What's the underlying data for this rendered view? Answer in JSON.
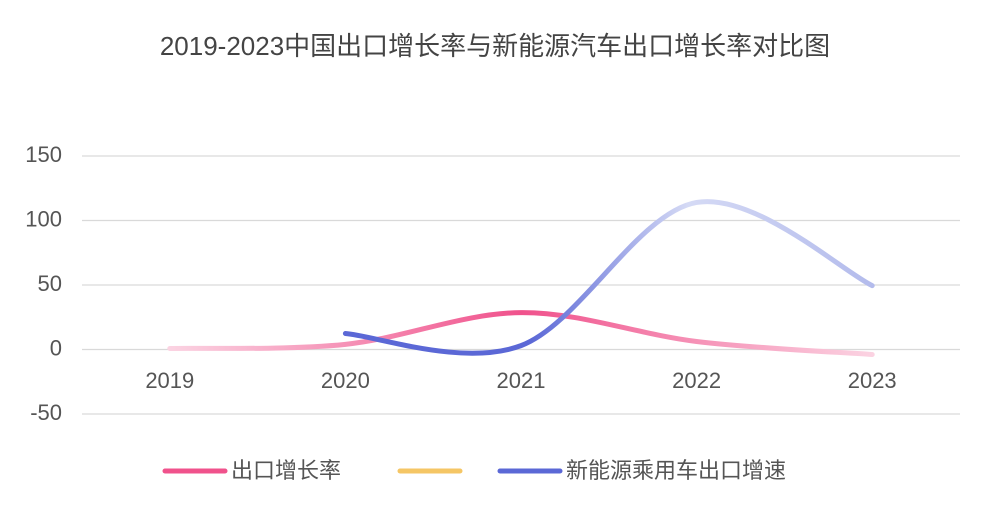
{
  "chart_data": {
    "type": "line",
    "title": "2019-2023中国出口增长率与新能源汽车出口增长率对比图",
    "categories": [
      "2019",
      "2020",
      "2021",
      "2022",
      "2023"
    ],
    "series": [
      {
        "name": "出口增长率",
        "color": "#f0528c",
        "values": [
          0.8,
          4,
          28.6,
          6.2,
          -3.9
        ]
      },
      {
        "color": "#f5c665",
        "values": [
          null,
          null,
          null,
          null,
          null
        ]
      },
      {
        "name": "新能源乘用车出口增速",
        "color": "#5b68d6",
        "values": [
          null,
          12.4,
          3,
          114,
          49.5
        ]
      }
    ],
    "ylim": [
      -50,
      150
    ],
    "yticks": [
      -50,
      0,
      50,
      100,
      150
    ],
    "grid": true,
    "legend": "bottom",
    "smooth": true
  }
}
